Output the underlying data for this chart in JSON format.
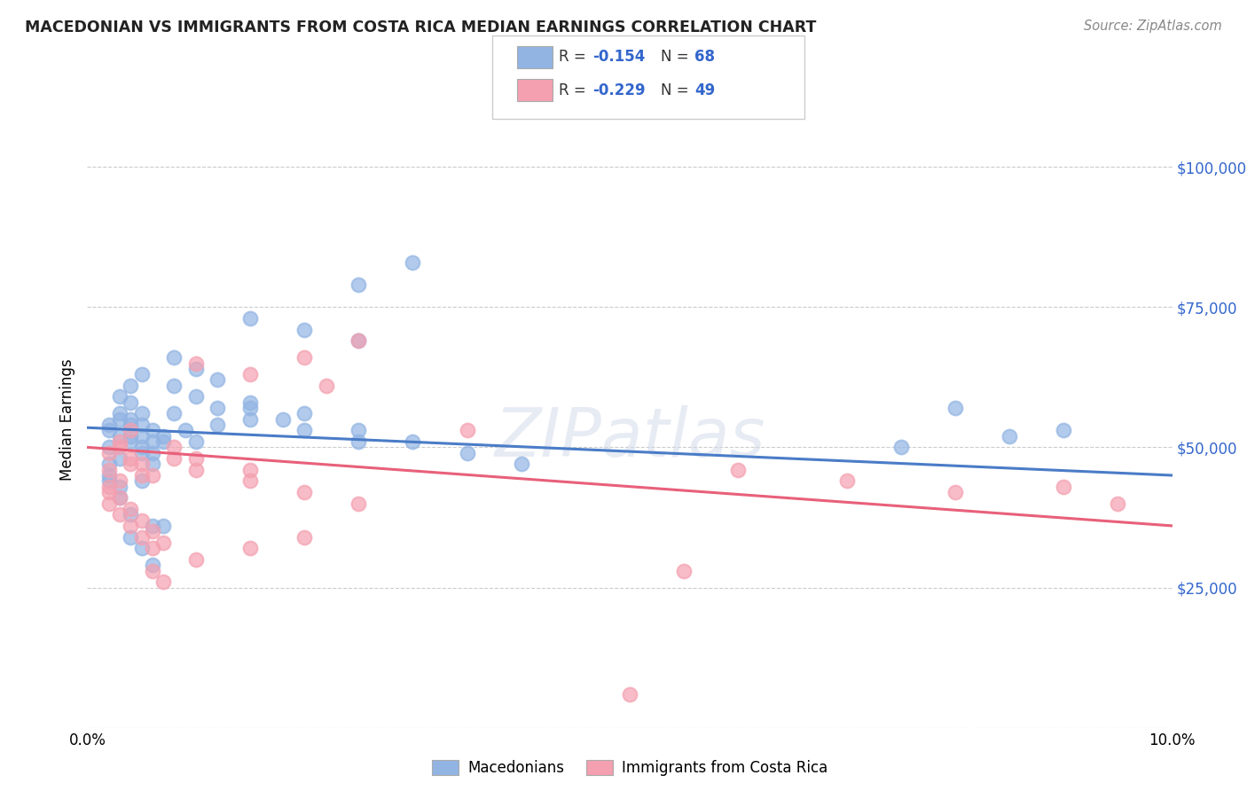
{
  "title": "MACEDONIAN VS IMMIGRANTS FROM COSTA RICA MEDIAN EARNINGS CORRELATION CHART",
  "source": "Source: ZipAtlas.com",
  "ylabel_label": "Median Earnings",
  "xlim": [
    0.0,
    0.1
  ],
  "ylim": [
    0,
    110000
  ],
  "yticks": [
    0,
    25000,
    50000,
    75000,
    100000
  ],
  "ytick_labels_right": [
    "",
    "$25,000",
    "$50,000",
    "$75,000",
    "$100,000"
  ],
  "xticks": [
    0.0,
    0.02,
    0.04,
    0.06,
    0.08,
    0.1
  ],
  "xtick_labels": [
    "0.0%",
    "",
    "",
    "",
    "",
    "10.0%"
  ],
  "blue_R": -0.154,
  "blue_N": 68,
  "pink_R": -0.229,
  "pink_N": 49,
  "blue_color": "#92B4E3",
  "pink_color": "#F4A0B0",
  "line_blue": "#4A7CC7",
  "line_pink": "#E8607A",
  "stat_color": "#3366CC",
  "watermark": "ZIPatlas",
  "legend_label_blue": "Macedonians",
  "legend_label_pink": "Immigrants from Costa Rica",
  "blue_scatter": [
    [
      0.002,
      53000
    ],
    [
      0.003,
      52000
    ],
    [
      0.004,
      55000
    ],
    [
      0.002,
      50000
    ],
    [
      0.003,
      48000
    ],
    [
      0.004,
      51000
    ],
    [
      0.005,
      54000
    ],
    [
      0.002,
      47000
    ],
    [
      0.003,
      55000
    ],
    [
      0.004,
      58000
    ],
    [
      0.005,
      52000
    ],
    [
      0.006,
      53000
    ],
    [
      0.002,
      45000
    ],
    [
      0.003,
      59000
    ],
    [
      0.004,
      61000
    ],
    [
      0.005,
      56000
    ],
    [
      0.006,
      49000
    ],
    [
      0.007,
      51000
    ],
    [
      0.002,
      44000
    ],
    [
      0.003,
      43000
    ],
    [
      0.004,
      54000
    ],
    [
      0.005,
      50000
    ],
    [
      0.006,
      47000
    ],
    [
      0.007,
      52000
    ],
    [
      0.025,
      79000
    ],
    [
      0.03,
      83000
    ],
    [
      0.015,
      73000
    ],
    [
      0.02,
      71000
    ],
    [
      0.025,
      69000
    ],
    [
      0.005,
      63000
    ],
    [
      0.008,
      66000
    ],
    [
      0.01,
      64000
    ],
    [
      0.012,
      62000
    ],
    [
      0.015,
      58000
    ],
    [
      0.02,
      56000
    ],
    [
      0.025,
      53000
    ],
    [
      0.03,
      51000
    ],
    [
      0.035,
      49000
    ],
    [
      0.04,
      47000
    ],
    [
      0.002,
      54000
    ],
    [
      0.003,
      56000
    ],
    [
      0.004,
      52000
    ],
    [
      0.005,
      49000
    ],
    [
      0.006,
      51000
    ],
    [
      0.003,
      41000
    ],
    [
      0.004,
      38000
    ],
    [
      0.005,
      44000
    ],
    [
      0.006,
      36000
    ],
    [
      0.004,
      34000
    ],
    [
      0.005,
      32000
    ],
    [
      0.006,
      29000
    ],
    [
      0.007,
      36000
    ],
    [
      0.008,
      56000
    ],
    [
      0.009,
      53000
    ],
    [
      0.01,
      51000
    ],
    [
      0.012,
      54000
    ],
    [
      0.015,
      57000
    ],
    [
      0.018,
      55000
    ],
    [
      0.08,
      57000
    ],
    [
      0.085,
      52000
    ],
    [
      0.075,
      50000
    ],
    [
      0.09,
      53000
    ],
    [
      0.02,
      53000
    ],
    [
      0.025,
      51000
    ],
    [
      0.008,
      61000
    ],
    [
      0.01,
      59000
    ],
    [
      0.012,
      57000
    ],
    [
      0.015,
      55000
    ]
  ],
  "pink_scatter": [
    [
      0.002,
      49000
    ],
    [
      0.003,
      51000
    ],
    [
      0.004,
      47000
    ],
    [
      0.002,
      46000
    ],
    [
      0.003,
      44000
    ],
    [
      0.004,
      48000
    ],
    [
      0.005,
      45000
    ],
    [
      0.002,
      42000
    ],
    [
      0.003,
      50000
    ],
    [
      0.004,
      53000
    ],
    [
      0.005,
      47000
    ],
    [
      0.006,
      45000
    ],
    [
      0.002,
      43000
    ],
    [
      0.003,
      41000
    ],
    [
      0.004,
      39000
    ],
    [
      0.005,
      37000
    ],
    [
      0.006,
      35000
    ],
    [
      0.007,
      33000
    ],
    [
      0.002,
      40000
    ],
    [
      0.003,
      38000
    ],
    [
      0.004,
      36000
    ],
    [
      0.005,
      34000
    ],
    [
      0.006,
      32000
    ],
    [
      0.02,
      66000
    ],
    [
      0.025,
      69000
    ],
    [
      0.015,
      63000
    ],
    [
      0.022,
      61000
    ],
    [
      0.01,
      65000
    ],
    [
      0.008,
      48000
    ],
    [
      0.01,
      46000
    ],
    [
      0.015,
      44000
    ],
    [
      0.02,
      42000
    ],
    [
      0.025,
      40000
    ],
    [
      0.008,
      50000
    ],
    [
      0.01,
      48000
    ],
    [
      0.015,
      46000
    ],
    [
      0.006,
      28000
    ],
    [
      0.007,
      26000
    ],
    [
      0.01,
      30000
    ],
    [
      0.015,
      32000
    ],
    [
      0.02,
      34000
    ],
    [
      0.055,
      28000
    ],
    [
      0.06,
      46000
    ],
    [
      0.07,
      44000
    ],
    [
      0.08,
      42000
    ],
    [
      0.09,
      43000
    ],
    [
      0.095,
      40000
    ],
    [
      0.05,
      6000
    ],
    [
      0.035,
      53000
    ]
  ]
}
